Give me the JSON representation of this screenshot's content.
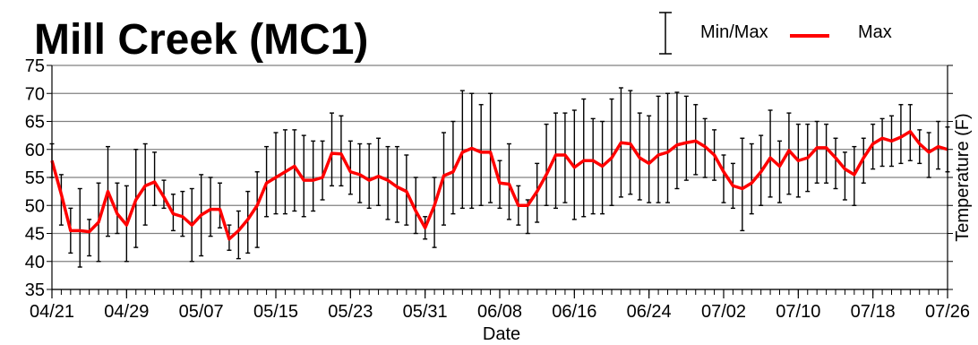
{
  "chart_data": {
    "type": "line",
    "title": "Mill Creek (MC1)",
    "xlabel": "Date",
    "ylabel": "Temperature (F)",
    "ylim": [
      35,
      75
    ],
    "yticks": [
      35,
      40,
      45,
      50,
      55,
      60,
      65,
      70,
      75
    ],
    "xlim": [
      "04/21",
      "07/26"
    ],
    "xtick_labels": [
      "04/21",
      "04/29",
      "05/07",
      "05/15",
      "05/23",
      "05/31",
      "06/08",
      "06/16",
      "06/24",
      "07/02",
      "07/10",
      "07/18",
      "07/26"
    ],
    "grid": "horizontal",
    "legend": {
      "position": "top-right",
      "errorbar_entry": "Min/Max",
      "line_entry": "Max"
    },
    "colors": {
      "max_line": "#ff0000",
      "error_bars": "#000000",
      "grid": "#808080"
    },
    "series": [
      {
        "name": "Max",
        "x": [
          "04/21",
          "04/22",
          "04/23",
          "04/24",
          "04/25",
          "04/26",
          "04/27",
          "04/28",
          "04/29",
          "04/30",
          "05/01",
          "05/02",
          "05/03",
          "05/04",
          "05/05",
          "05/06",
          "05/07",
          "05/08",
          "05/09",
          "05/10",
          "05/11",
          "05/12",
          "05/13",
          "05/14",
          "05/15",
          "05/16",
          "05/17",
          "05/18",
          "05/19",
          "05/20",
          "05/21",
          "05/22",
          "05/23",
          "05/24",
          "05/25",
          "05/26",
          "05/27",
          "05/28",
          "05/29",
          "05/30",
          "05/31",
          "06/01",
          "06/02",
          "06/03",
          "06/04",
          "06/05",
          "06/06",
          "06/07",
          "06/08",
          "06/09",
          "06/10",
          "06/11",
          "06/12",
          "06/13",
          "06/14",
          "06/15",
          "06/16",
          "06/17",
          "06/18",
          "06/19",
          "06/20",
          "06/21",
          "06/22",
          "06/23",
          "06/24",
          "06/25",
          "06/26",
          "06/27",
          "06/28",
          "06/29",
          "06/30",
          "07/01",
          "07/02",
          "07/03",
          "07/04",
          "07/05",
          "07/06",
          "07/07",
          "07/08",
          "07/09",
          "07/10",
          "07/11",
          "07/12",
          "07/13",
          "07/14",
          "07/15",
          "07/16",
          "07/17",
          "07/18",
          "07/19",
          "07/20",
          "07/21",
          "07/22",
          "07/23",
          "07/24",
          "07/25",
          "07/26"
        ],
        "values": [
          58,
          52,
          45.5,
          45.5,
          45.3,
          47,
          52.5,
          48.5,
          46.5,
          51,
          53.5,
          54.2,
          51.5,
          48.5,
          48,
          46.5,
          48.3,
          49.3,
          49.3,
          44,
          45.5,
          47.5,
          50,
          54,
          55,
          56,
          57,
          54.5,
          54.5,
          55,
          59.3,
          59.2,
          56,
          55.5,
          54.5,
          55.2,
          54.5,
          53.3,
          52.5,
          49,
          46,
          50,
          55.3,
          56,
          59.5,
          60.2,
          59.5,
          59.5,
          54,
          53.8,
          50,
          50,
          52.5,
          55.5,
          59,
          59,
          56.8,
          58,
          58,
          57,
          58.5,
          61.2,
          61,
          58.5,
          57.5,
          59,
          59.5,
          60.8,
          61.2,
          61.5,
          60.5,
          59,
          56,
          53.5,
          53,
          54,
          56,
          58.5,
          57,
          59.8,
          58,
          58.5,
          60.3,
          60.3,
          58.5,
          56.5,
          55.5,
          58.5,
          61,
          62,
          61.5,
          62.2,
          63.2,
          61,
          59.5,
          60.5,
          60
        ]
      }
    ],
    "minmax": {
      "name": "Min/Max",
      "min": [
        55,
        46.5,
        41.5,
        39,
        41,
        40,
        44.5,
        45,
        40,
        42.5,
        46.5,
        50,
        49.5,
        45.5,
        44.5,
        40,
        41,
        44.5,
        46,
        42,
        40.5,
        41.5,
        42.5,
        48,
        48.5,
        48.5,
        49,
        48,
        49,
        51,
        53.5,
        53.5,
        52,
        50.5,
        49.5,
        50,
        47.5,
        47,
        46.5,
        45,
        44,
        42.5,
        46.5,
        48.5,
        49.5,
        49.5,
        50,
        50.5,
        49.5,
        47.5,
        46.5,
        45,
        47,
        50,
        49.5,
        50.5,
        47.5,
        48,
        48.5,
        48.5,
        50,
        51.5,
        52,
        51,
        50.5,
        50.5,
        50.5,
        53,
        54.5,
        55.5,
        55,
        54.5,
        50.5,
        49.5,
        45.5,
        48.5,
        50,
        51.5,
        50.5,
        52,
        51.5,
        52.5,
        54,
        54,
        53,
        51,
        50,
        54,
        56.5,
        57,
        57,
        57.5,
        58,
        57.5,
        55,
        56.5,
        56
      ],
      "max": [
        61,
        55.5,
        49.5,
        53,
        47.5,
        54,
        60.5,
        54,
        53.5,
        60,
        61,
        59.5,
        54.5,
        52,
        52.5,
        53,
        55.5,
        55,
        54,
        46.5,
        49,
        52.5,
        56,
        60.5,
        63,
        63.5,
        63.5,
        62.5,
        61.5,
        61.5,
        66.5,
        66,
        61.5,
        61,
        61,
        62,
        60.5,
        60.5,
        59,
        55,
        48,
        55,
        63,
        65,
        70.5,
        70,
        68,
        70,
        58,
        61,
        53.5,
        51,
        57.5,
        64.5,
        66.5,
        66.5,
        67,
        69,
        65.5,
        65,
        69,
        71,
        70.5,
        66.5,
        66,
        69.5,
        70,
        70.2,
        69.5,
        68,
        65.5,
        63.5,
        59,
        57.5,
        62,
        61,
        62.5,
        67,
        61.5,
        66.5,
        64.5,
        64.5,
        65,
        64.5,
        62,
        59.5,
        60.5,
        62,
        64.5,
        65.5,
        66,
        68,
        68,
        63.5,
        63,
        65,
        64
      ]
    }
  }
}
